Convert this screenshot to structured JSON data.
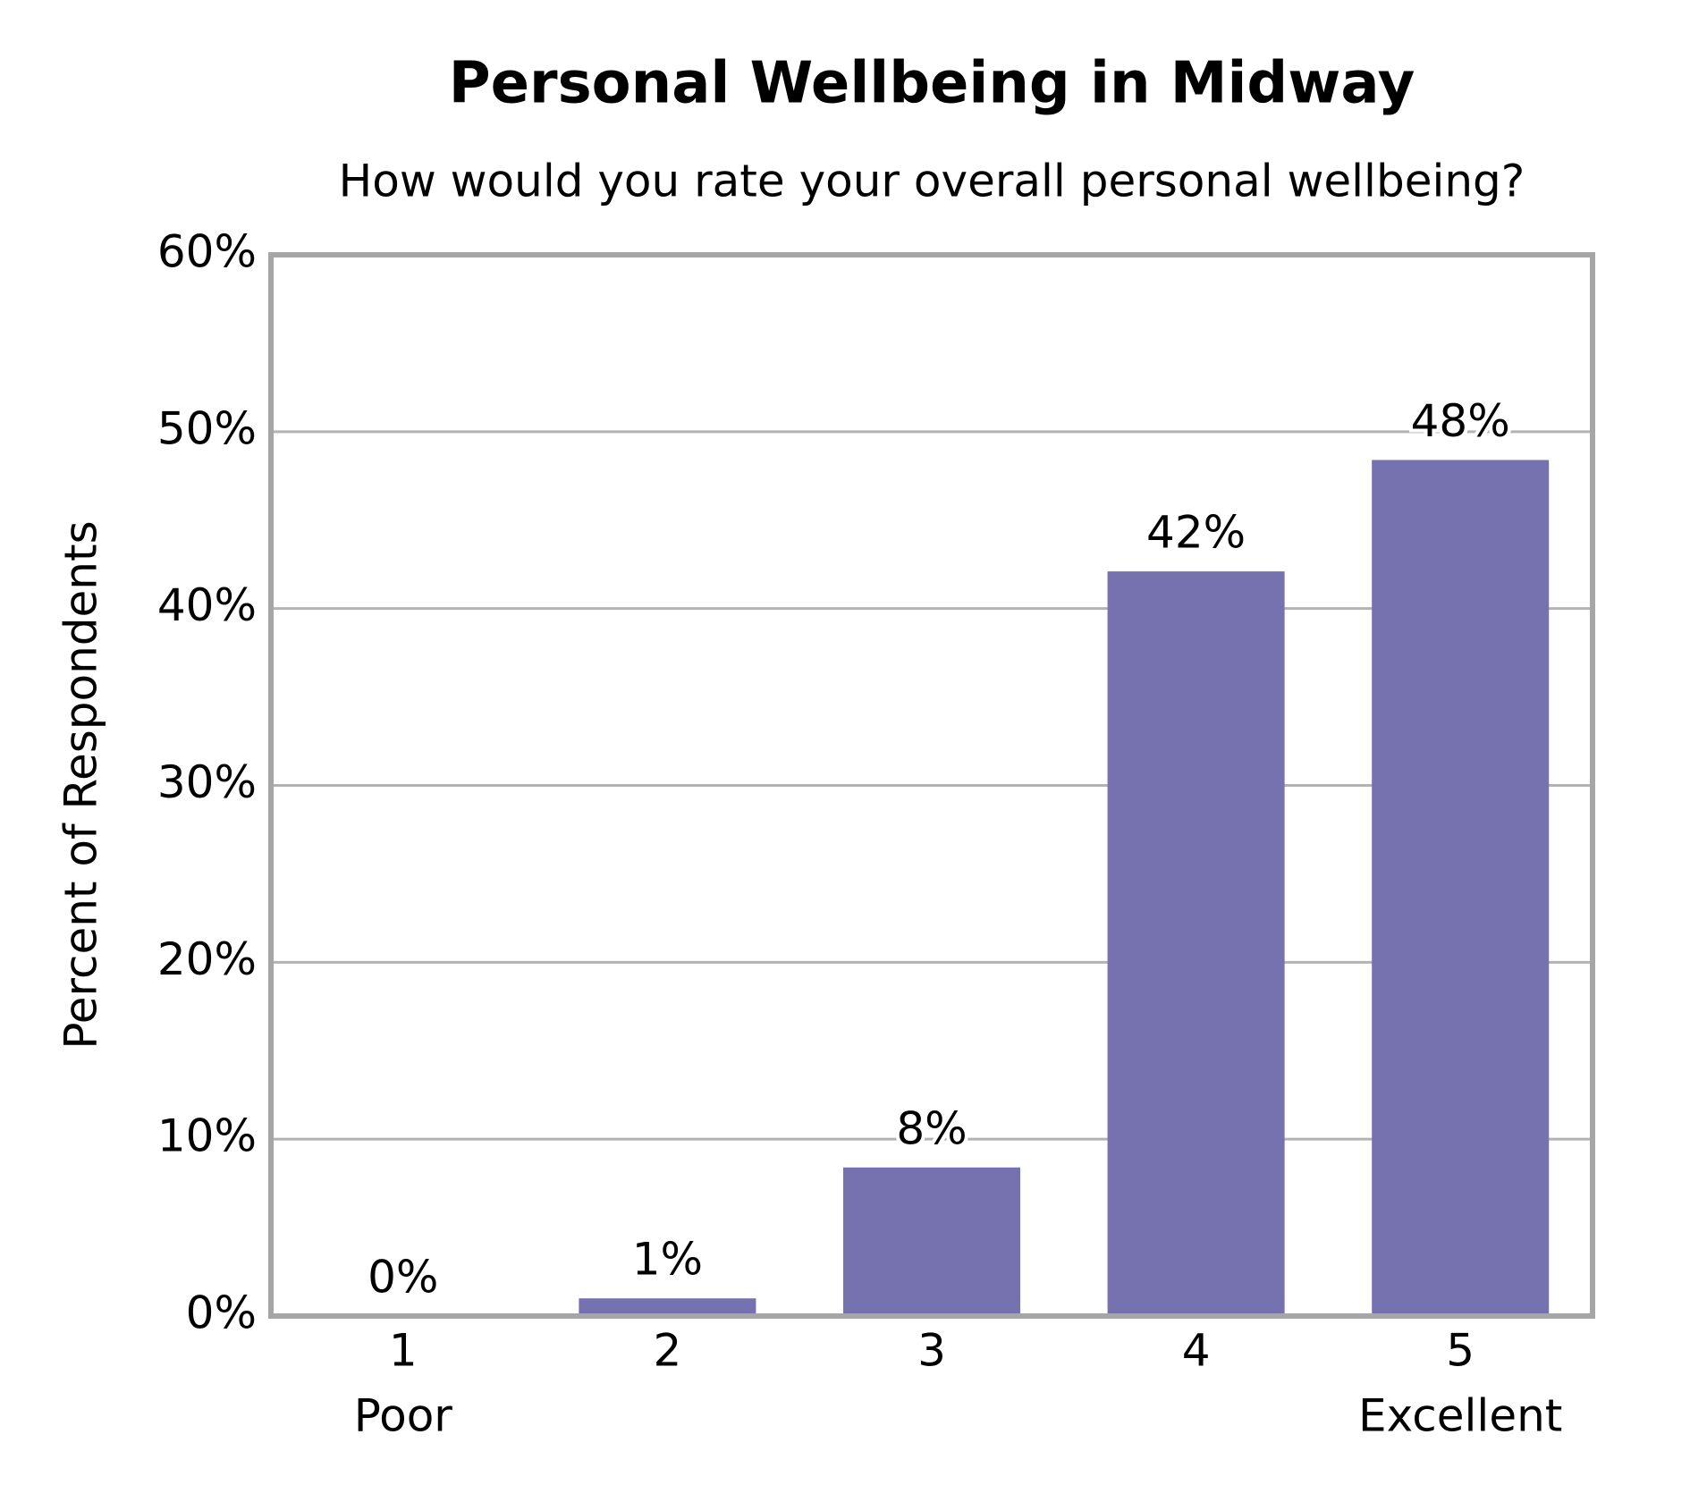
{
  "chart_data": {
    "type": "bar",
    "title": "Personal Wellbeing in Midway",
    "subtitle": "How would you rate your overall personal wellbeing?",
    "y_label": "Percent of Respondents",
    "categories": [
      "1",
      "2",
      "3",
      "4",
      "5"
    ],
    "category_sublabels": [
      "Poor",
      null,
      null,
      null,
      "Excellent"
    ],
    "values": [
      0,
      1.0,
      8.4,
      42.1,
      48.4
    ],
    "value_labels": [
      "0%",
      "1%",
      "8%",
      "42%",
      "48%"
    ],
    "color": "#7672b0",
    "ylim": [
      0,
      60
    ],
    "yticks": [
      {
        "value": 0,
        "label": "0%"
      },
      {
        "value": 10,
        "label": "10%"
      },
      {
        "value": 20,
        "label": "20%"
      },
      {
        "value": 30,
        "label": "30%"
      },
      {
        "value": 40,
        "label": "40%"
      },
      {
        "value": 50,
        "label": "50%"
      },
      {
        "value": 60,
        "label": "60%"
      }
    ],
    "grid": true
  }
}
